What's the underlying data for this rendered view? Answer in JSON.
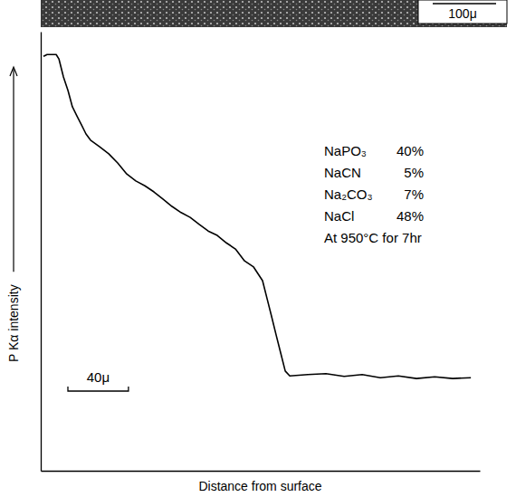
{
  "chart_data": {
    "type": "line",
    "x_label": "Distance from surface",
    "y_label": "P Kα intensity",
    "micrograph_scale": "100μ",
    "composition": [
      {
        "name": "NaPO₃",
        "amount": "40%"
      },
      {
        "name": "NaCN",
        "amount": "5%"
      },
      {
        "name": "Na₂CO₃",
        "amount": "7%"
      },
      {
        "name": "NaCl",
        "amount": "48%"
      }
    ],
    "condition": "At 950°C for 7hr",
    "scale_bar": {
      "value": 40,
      "label": "40μ"
    },
    "x": [
      1.8,
      4.2,
      10.2,
      12.0,
      15.0,
      18.0,
      20.9,
      23.9,
      26.9,
      29.9,
      32.9,
      38.9,
      44.9,
      50.8,
      56.8,
      62.8,
      68.8,
      74.8,
      80.7,
      86.7,
      92.7,
      98.7,
      104.7,
      110.6,
      116.6,
      122.6,
      128.6,
      134.6,
      140.6,
      146.5,
      149.5,
      152.5,
      155.5,
      158.5,
      161.5,
      164.5,
      176.4,
      188.4,
      200.4,
      212.3,
      224.3,
      236.2,
      248.2,
      260.2,
      272.1,
      284.1
    ],
    "values": [
      94.4,
      94.8,
      94.8,
      93.8,
      89.7,
      86.6,
      82.9,
      80.8,
      78.8,
      76.7,
      75.3,
      73.8,
      72.2,
      70.1,
      67.6,
      66.0,
      64.9,
      63.5,
      61.9,
      60.2,
      58.8,
      57.7,
      56.1,
      54.6,
      53.6,
      51.9,
      50.5,
      47.8,
      46.4,
      43.3,
      39.2,
      35.1,
      30.9,
      26.8,
      22.7,
      21.6,
      21.9,
      22.1,
      21.5,
      21.9,
      21.2,
      21.6,
      21.0,
      21.4,
      21.0,
      21.2
    ],
    "color": "#000000",
    "xlim": [
      0,
      290
    ],
    "ylim": [
      0,
      100
    ],
    "xticks": [],
    "yticks": [],
    "tick_labels": false,
    "grid": false
  }
}
